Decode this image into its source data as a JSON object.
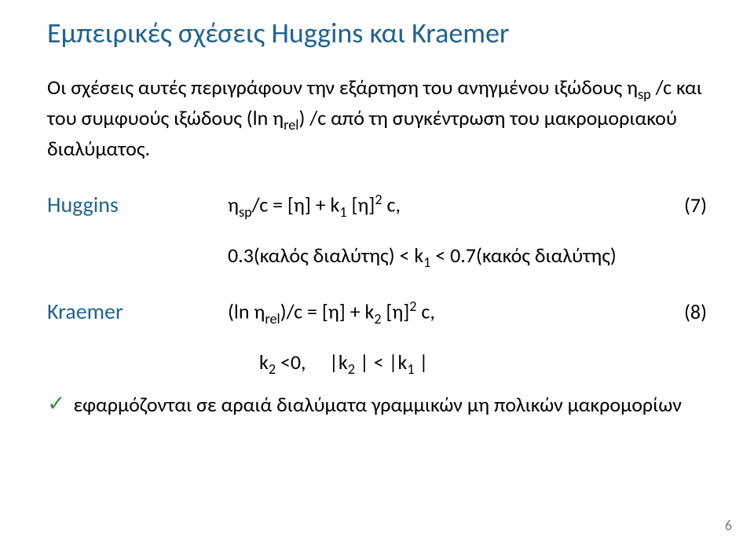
{
  "title": "Εμπειρικές σχέσεις Huggins και Kraemer",
  "paragraph_parts": {
    "p1": "Οι σχέσεις αυτές περιγράφουν την εξάρτηση του ανηγμένου ιξώδους η",
    "p1_sub": "sp",
    "p1b": " /c  και του συμφυούς ιξώδους (ln η",
    "p1b_sub": "rel",
    "p1c": ") /c  από τη συγκέντρωση του μακρομοριακού διαλύματος."
  },
  "huggins": {
    "label": "Huggins",
    "eq_a": "η",
    "eq_a_sub": "sp",
    "eq_b": "/c = [η] + k",
    "eq_b_sub": "1",
    "eq_c": " [η]",
    "eq_c_sup": "2",
    "eq_d": " c,",
    "num": "(7)",
    "note_a": "0.3(καλός διαλύτης) < k",
    "note_a_sub": "1",
    "note_b": " < 0.7(κακός διαλύτης)"
  },
  "kraemer": {
    "label": "Kraemer",
    "eq_a": "(ln η",
    "eq_a_sub": "rel",
    "eq_b": ")/c = [η] + k",
    "eq_b_sub": "2",
    "eq_c": " [η]",
    "eq_c_sup": "2",
    "eq_d": " c,",
    "num": "(8)",
    "note_a": "k",
    "note_a_sub": "2",
    "note_b": " <0,     |k",
    "note_b_sub": "2",
    "note_c": " | < |k",
    "note_c_sub": "1",
    "note_d": " |"
  },
  "bullet": {
    "text": "εφαρμόζονται σε αραιά διαλύματα γραμμικών μη πολικών μακρομορίων"
  },
  "page_number": "6"
}
